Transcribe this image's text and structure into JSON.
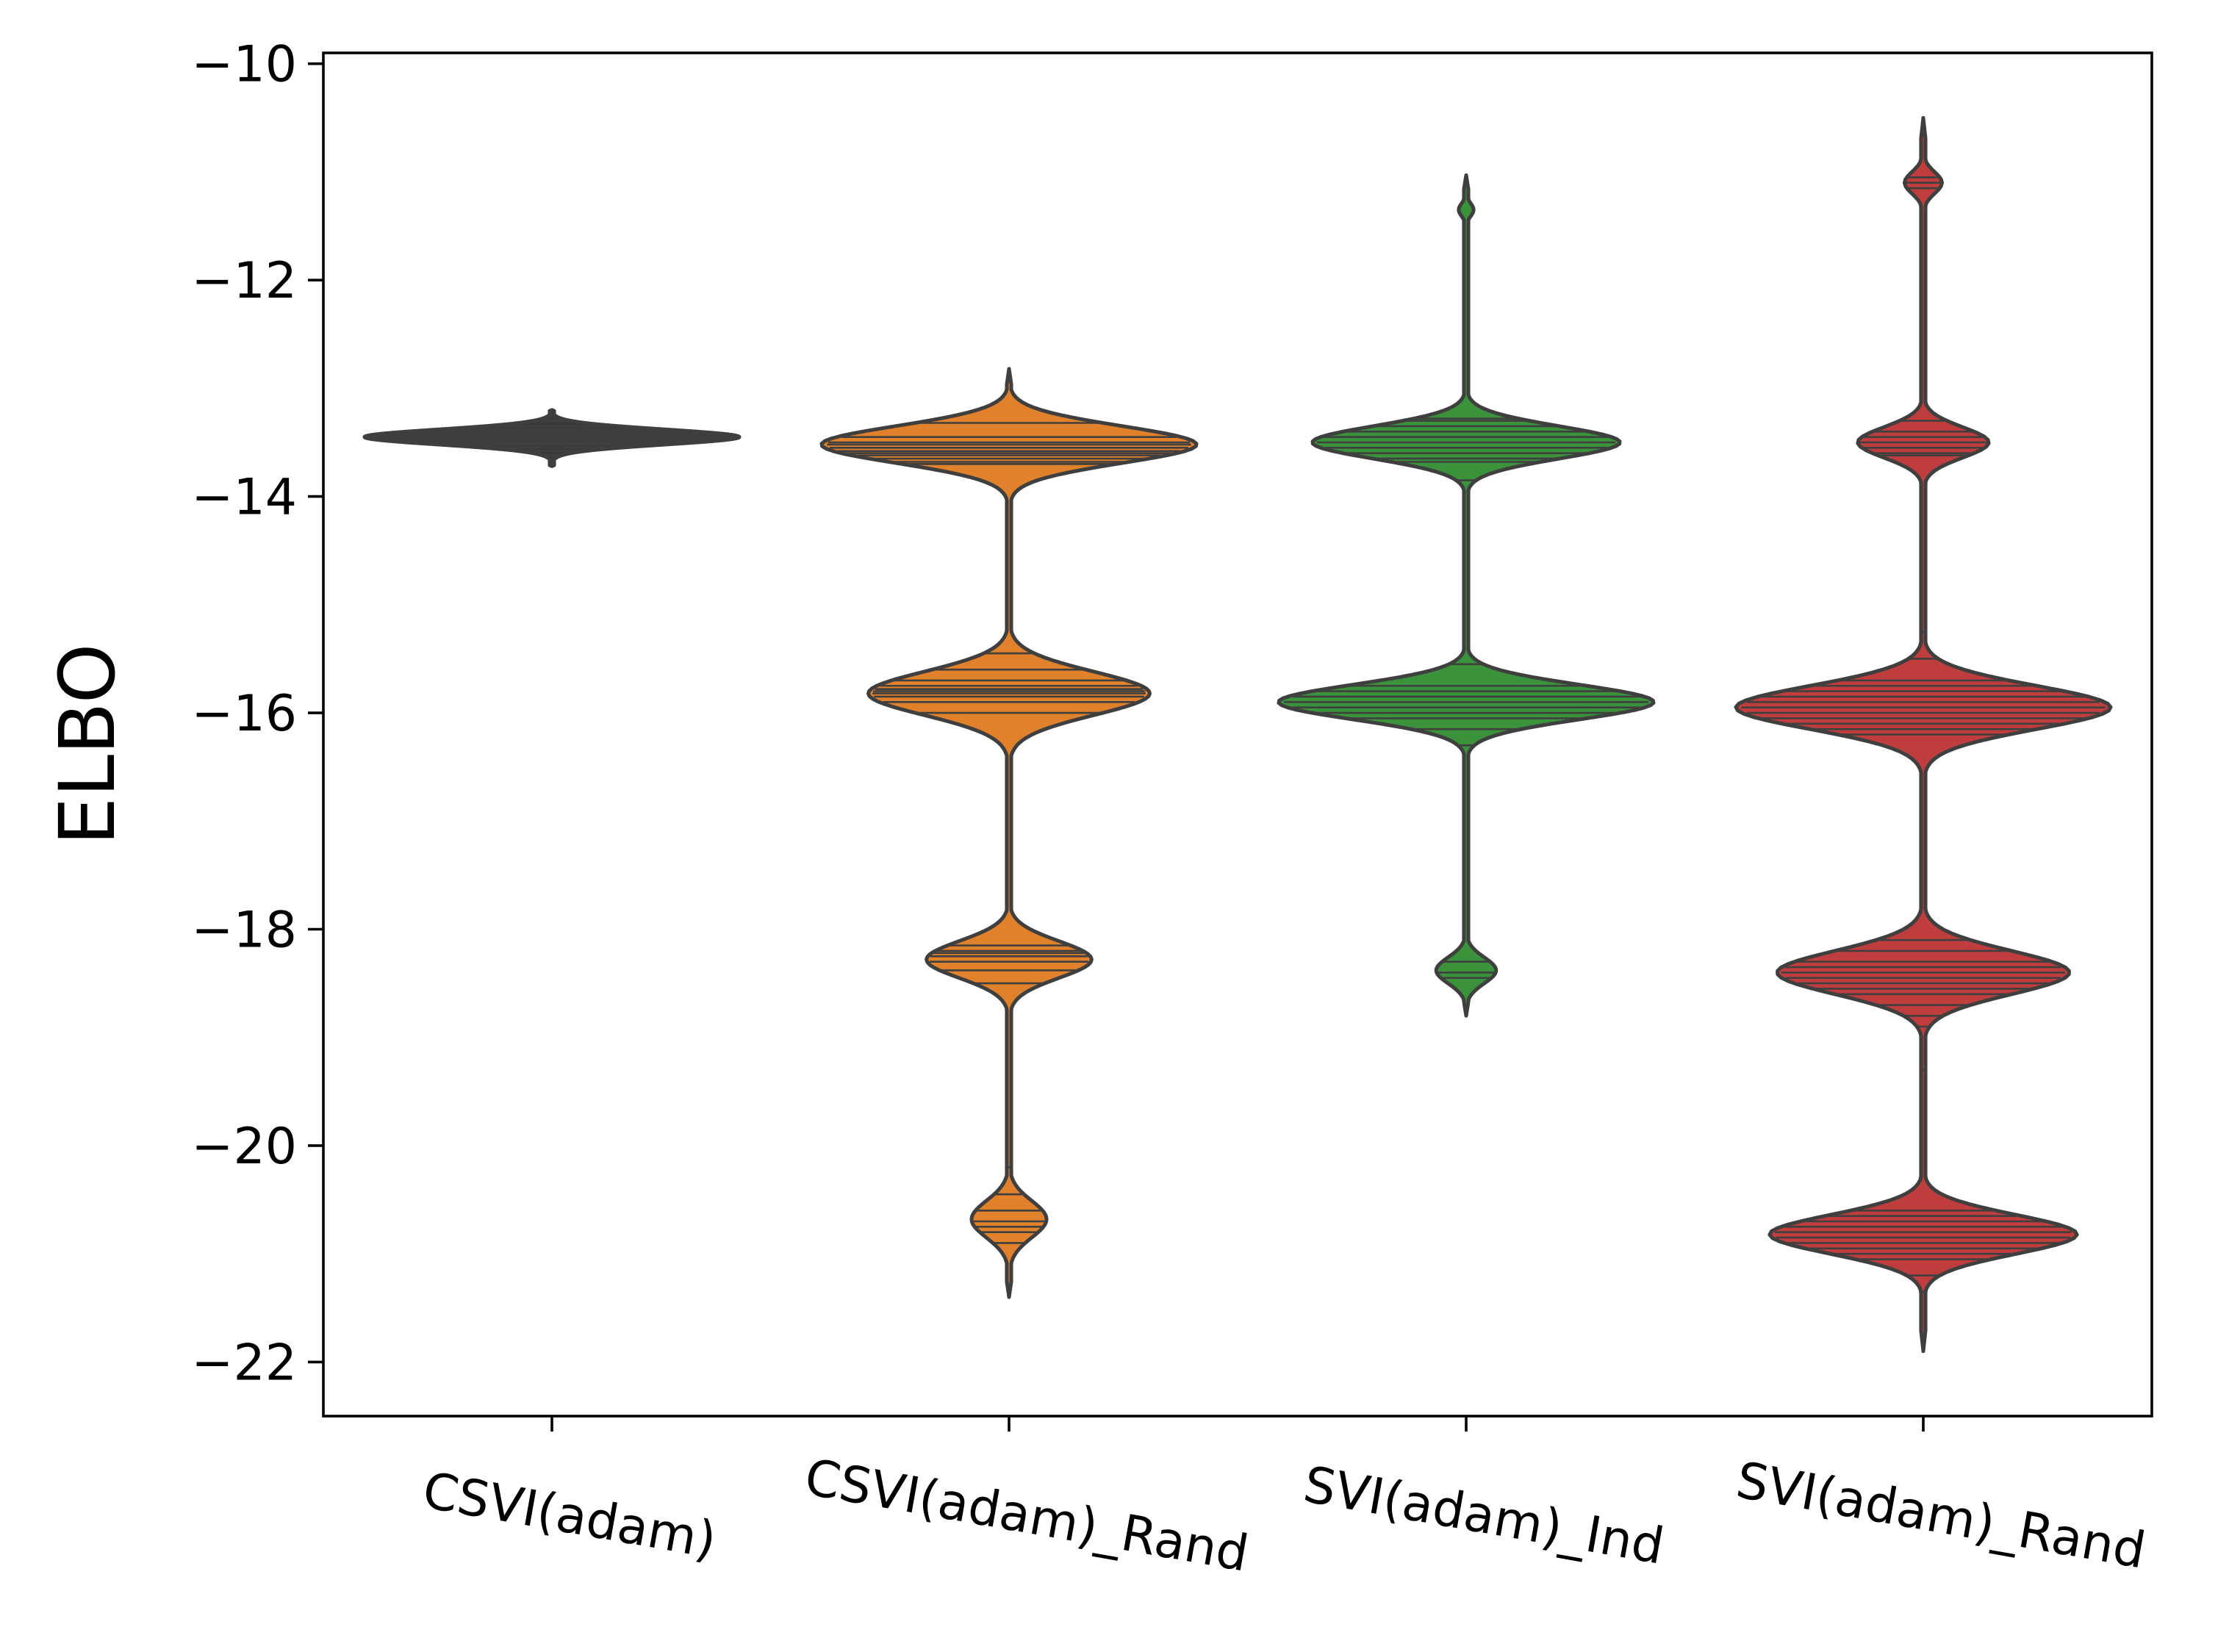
{
  "chart_data": {
    "type": "violin",
    "title": "",
    "xlabel": "",
    "ylabel": "ELBO",
    "ylim": [
      -22.5,
      -9.9
    ],
    "yticks": [
      -10,
      -12,
      -14,
      -16,
      -18,
      -20,
      -22
    ],
    "ytick_labels": [
      "−10",
      "−12",
      "−14",
      "−16",
      "−18",
      "−20",
      "−22"
    ],
    "categories": [
      "CSVI(adam)",
      "CSVI(adam)_Rand",
      "SVI(adam)_Ind",
      "SVI(adam)_Rand"
    ],
    "colors": [
      "#3a3a3a",
      "#e1812c",
      "#3a923a",
      "#c03d3e"
    ],
    "line_color": "#3f3f3f",
    "series": [
      {
        "category": "CSVI(adam)",
        "y_min": -13.72,
        "y_max": -13.2,
        "modes": [
          {
            "center": -13.45,
            "sigma": 0.07,
            "weight": 1.0
          }
        ],
        "stick_values": [
          -13.25,
          -13.3,
          -13.35,
          -13.38,
          -13.4,
          -13.42,
          -13.44,
          -13.45,
          -13.46,
          -13.48,
          -13.5,
          -13.52,
          -13.55,
          -13.58,
          -13.62,
          -13.66,
          -13.7
        ]
      },
      {
        "category": "CSVI(adam)_Rand",
        "y_min": -21.4,
        "y_max": -12.82,
        "modes": [
          {
            "center": -13.52,
            "sigma": 0.17,
            "weight": 1.0
          },
          {
            "center": -15.82,
            "sigma": 0.2,
            "weight": 0.75
          },
          {
            "center": -18.28,
            "sigma": 0.17,
            "weight": 0.44
          },
          {
            "center": -20.68,
            "sigma": 0.17,
            "weight": 0.2
          }
        ],
        "stick_values": [
          -13.32,
          -13.45,
          -13.5,
          -13.52,
          -13.55,
          -13.58,
          -13.6,
          -13.62,
          -13.65,
          -13.68,
          -13.7,
          -15.45,
          -15.6,
          -15.7,
          -15.75,
          -15.78,
          -15.8,
          -15.82,
          -15.85,
          -15.9,
          -16.0,
          -18.15,
          -18.2,
          -18.22,
          -18.25,
          -18.3,
          -18.38,
          -18.5,
          -20.2,
          -20.45,
          -20.6,
          -20.7,
          -20.75,
          -20.8,
          -20.9
        ]
      },
      {
        "category": "SVI(adam)_Ind",
        "y_min": -18.8,
        "y_max": -11.03,
        "modes": [
          {
            "center": -11.35,
            "sigma": 0.06,
            "weight": 0.04
          },
          {
            "center": -13.5,
            "sigma": 0.15,
            "weight": 0.82
          },
          {
            "center": -15.9,
            "sigma": 0.16,
            "weight": 1.0
          },
          {
            "center": -18.38,
            "sigma": 0.12,
            "weight": 0.16
          }
        ],
        "stick_values": [
          -13.28,
          -13.3,
          -13.35,
          -13.4,
          -13.45,
          -13.5,
          -13.55,
          -13.6,
          -13.65,
          -13.68,
          -13.85,
          -15.55,
          -15.75,
          -15.8,
          -15.85,
          -15.9,
          -15.95,
          -16.0,
          -16.05,
          -16.15,
          -16.3,
          -18.3,
          -18.4,
          -18.45
        ]
      },
      {
        "category": "SVI(adam)_Rand",
        "y_min": -21.9,
        "y_max": -10.5,
        "modes": [
          {
            "center": -11.1,
            "sigma": 0.1,
            "weight": 0.1
          },
          {
            "center": -13.5,
            "sigma": 0.14,
            "weight": 0.35
          },
          {
            "center": -15.95,
            "sigma": 0.2,
            "weight": 1.0
          },
          {
            "center": -18.4,
            "sigma": 0.2,
            "weight": 0.78
          },
          {
            "center": -20.82,
            "sigma": 0.18,
            "weight": 0.82
          }
        ],
        "stick_values": [
          -11.05,
          -11.1,
          -11.15,
          -13.3,
          -13.4,
          -13.45,
          -13.5,
          -13.55,
          -13.6,
          -13.62,
          -15.25,
          -15.5,
          -15.7,
          -15.75,
          -15.8,
          -15.85,
          -15.9,
          -15.95,
          -16.0,
          -16.05,
          -16.1,
          -16.15,
          -16.2,
          -18.1,
          -18.2,
          -18.3,
          -18.35,
          -18.4,
          -18.45,
          -18.5,
          -18.55,
          -18.6,
          -18.7,
          -18.8,
          -18.9,
          -19.3,
          -20.6,
          -20.65,
          -20.7,
          -20.75,
          -20.8,
          -20.85,
          -20.9,
          -20.95,
          -21.0,
          -21.05,
          -21.2,
          -21.35
        ]
      }
    ]
  }
}
